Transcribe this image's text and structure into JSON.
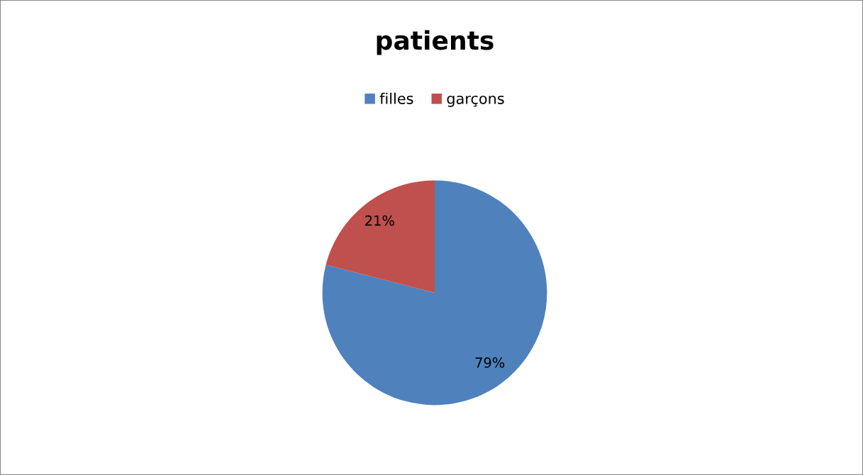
{
  "chart_data": {
    "type": "pie",
    "title": "patients",
    "categories": [
      "filles",
      "garçons"
    ],
    "values": [
      79,
      21
    ],
    "colors": [
      "#4f81bd",
      "#c0504d"
    ],
    "value_labels": [
      "79%",
      "21%"
    ],
    "legend": "top"
  }
}
